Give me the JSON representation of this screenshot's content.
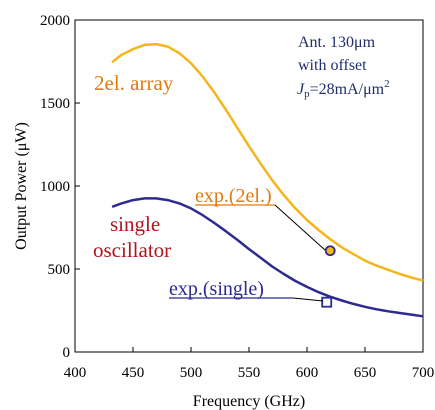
{
  "chart_data": {
    "type": "line",
    "title": "",
    "xlabel": "Frequency (GHz)",
    "ylabel": "Output Power (μW)",
    "xlim": [
      400,
      700
    ],
    "ylim": [
      0,
      2000
    ],
    "xticks": [
      "400",
      "450",
      "500",
      "550",
      "600",
      "650",
      "700"
    ],
    "yticks": [
      "0",
      "500",
      "1000",
      "1500",
      "2000"
    ],
    "grid": false,
    "series": [
      {
        "name": "2el. array",
        "color": "#F5B51C",
        "x": [
          432,
          440,
          450,
          460,
          470,
          480,
          490,
          500,
          510,
          520,
          530,
          540,
          550,
          560,
          570,
          580,
          590,
          600,
          610,
          620,
          630,
          640,
          650,
          660,
          670,
          680,
          690,
          700
        ],
        "y": [
          1745,
          1790,
          1825,
          1850,
          1855,
          1840,
          1800,
          1740,
          1660,
          1565,
          1460,
          1350,
          1240,
          1135,
          1035,
          945,
          865,
          795,
          735,
          680,
          630,
          590,
          550,
          520,
          495,
          470,
          448,
          430
        ]
      },
      {
        "name": "single oscillator",
        "color": "#2E2A8F",
        "x": [
          432,
          440,
          450,
          460,
          470,
          480,
          490,
          500,
          510,
          520,
          530,
          540,
          550,
          560,
          570,
          580,
          590,
          600,
          610,
          620,
          630,
          640,
          650,
          660,
          670,
          680,
          690,
          700
        ],
        "y": [
          875,
          895,
          915,
          925,
          925,
          915,
          895,
          865,
          825,
          778,
          728,
          675,
          620,
          568,
          515,
          470,
          428,
          392,
          360,
          333,
          310,
          290,
          272,
          257,
          245,
          235,
          225,
          215
        ]
      }
    ],
    "points": [
      {
        "name": "exp.(2el.)",
        "x": 620,
        "y": 610,
        "marker": "circle",
        "fill": "#F5B51C",
        "stroke": "#2E2A8F"
      },
      {
        "name": "exp.(single)",
        "x": 617,
        "y": 300,
        "marker": "square",
        "fill": "#ffffff",
        "stroke": "#2E2A8F"
      }
    ],
    "annotations": {
      "array_label": "2el. array",
      "single_line1": "single",
      "single_line2": "oscillator",
      "exp2_label": "exp.(2el.)",
      "exps_label": "exp.(single)",
      "cond_line1": "Ant. 130μm",
      "cond_line2": "with offset",
      "cond_j": "J",
      "cond_sub": "p",
      "cond_rest": "=28mA/μm",
      "cond_sup": "2"
    },
    "colors": {
      "array_label": "#E07B10",
      "exp2_label": "#E07B10",
      "single_label": "#B0141C",
      "exps_label": "#2E2A8F",
      "cond_text": "#1F2F6B"
    }
  }
}
